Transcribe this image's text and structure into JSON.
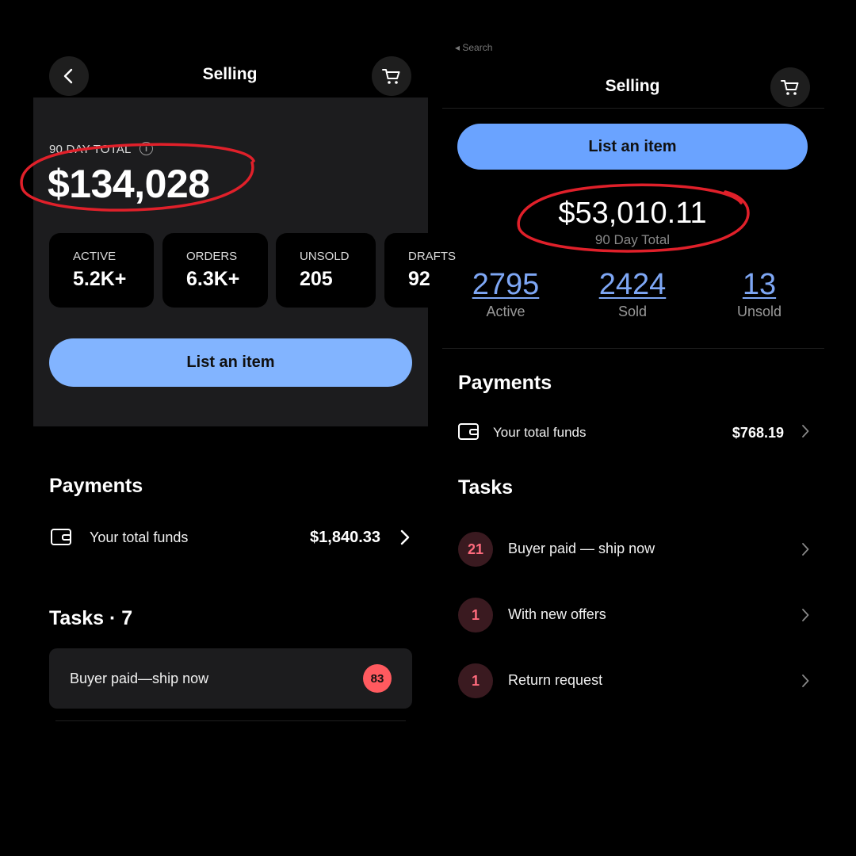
{
  "left": {
    "header": {
      "title": "Selling"
    },
    "summary": {
      "label": "90 DAY TOTAL",
      "info_icon": "i",
      "total": "$134,028"
    },
    "stats": [
      {
        "label": "ACTIVE",
        "value": "5.2K+"
      },
      {
        "label": "ORDERS",
        "value": "6.3K+"
      },
      {
        "label": "UNSOLD",
        "value": "205"
      },
      {
        "label": "DRAFTS",
        "value": "92"
      }
    ],
    "list_button": "List an item",
    "payments": {
      "title": "Payments",
      "funds_label": "Your total funds",
      "funds_value": "$1,840.33"
    },
    "tasks": {
      "title": "Tasks · 7",
      "items": [
        {
          "label": "Buyer paid—ship now",
          "count": "83"
        }
      ]
    }
  },
  "right": {
    "search_back": "◂ Search",
    "header": {
      "title": "Selling"
    },
    "list_button": "List an item",
    "summary": {
      "total": "$53,010.11",
      "label": "90 Day Total"
    },
    "stats": [
      {
        "value": "2795",
        "label": "Active"
      },
      {
        "value": "2424",
        "label": "Sold"
      },
      {
        "value": "13",
        "label": "Unsold"
      }
    ],
    "payments": {
      "title": "Payments",
      "funds_label": "Your total funds",
      "funds_value": "$768.19"
    },
    "tasks": {
      "title": "Tasks",
      "items": [
        {
          "count": "21",
          "label": "Buyer paid — ship now"
        },
        {
          "count": "1",
          "label": "With new offers"
        },
        {
          "count": "1",
          "label": "Return request"
        }
      ]
    }
  },
  "icons": [
    "back-arrow-icon",
    "cart-icon",
    "info-icon",
    "wallet-icon",
    "chevron-right-icon"
  ],
  "colors": {
    "accent": "#82b4ff",
    "badge_red": "#ff5a5f",
    "link_blue": "#7ea7f5",
    "annotation_red": "#e0202a"
  }
}
